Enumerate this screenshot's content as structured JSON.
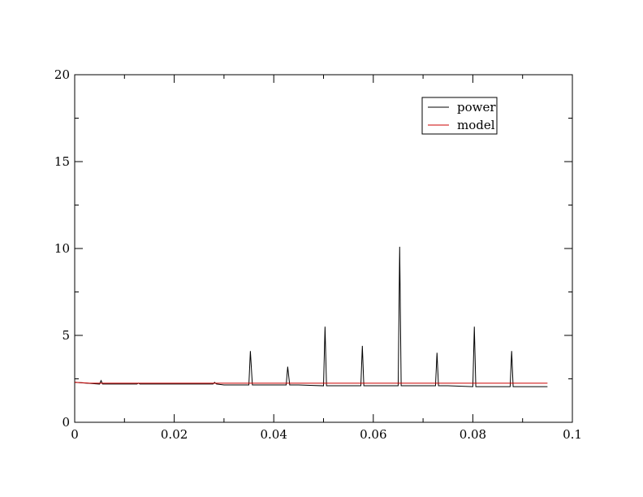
{
  "chart_data": {
    "type": "line",
    "title": "",
    "xlabel": "",
    "ylabel": "",
    "xlim": [
      0,
      0.1
    ],
    "ylim": [
      0,
      20
    ],
    "x_ticks": [
      0,
      0.02,
      0.04,
      0.06,
      0.08,
      0.1
    ],
    "x_tick_labels": [
      "0",
      "0.02",
      "0.04",
      "0.06",
      "0.08",
      "0.1"
    ],
    "y_ticks": [
      0,
      5,
      10,
      15,
      20
    ],
    "y_tick_labels": [
      "0",
      "5",
      "10",
      "15",
      "20"
    ],
    "grid": false,
    "legend_position": "top-right",
    "series": [
      {
        "name": "power",
        "color": "#000000",
        "x": [
          0.0,
          0.005,
          0.0053,
          0.0056,
          0.01,
          0.0125,
          0.0128,
          0.0131,
          0.015,
          0.02,
          0.025,
          0.0278,
          0.0281,
          0.0285,
          0.03,
          0.035,
          0.0353,
          0.0357,
          0.036,
          0.04,
          0.0425,
          0.0428,
          0.0432,
          0.0435,
          0.045,
          0.05,
          0.0503,
          0.0506,
          0.051,
          0.055,
          0.0575,
          0.0578,
          0.0581,
          0.0585,
          0.06,
          0.065,
          0.0653,
          0.0656,
          0.066,
          0.07,
          0.0725,
          0.0728,
          0.0731,
          0.0735,
          0.075,
          0.08,
          0.0803,
          0.0806,
          0.081,
          0.085,
          0.0875,
          0.0878,
          0.0881,
          0.0885,
          0.09,
          0.095
        ],
        "y": [
          2.3,
          2.2,
          2.4,
          2.2,
          2.2,
          2.2,
          2.25,
          2.2,
          2.2,
          2.2,
          2.2,
          2.2,
          2.3,
          2.2,
          2.15,
          2.15,
          4.1,
          2.15,
          2.15,
          2.15,
          2.15,
          3.2,
          2.15,
          2.15,
          2.15,
          2.1,
          5.5,
          2.1,
          2.1,
          2.1,
          2.1,
          4.4,
          2.1,
          2.1,
          2.1,
          2.1,
          10.1,
          2.1,
          2.1,
          2.1,
          2.1,
          4.0,
          2.1,
          2.1,
          2.1,
          2.05,
          5.5,
          2.05,
          2.05,
          2.05,
          2.05,
          4.1,
          2.05,
          2.05,
          2.05,
          2.05
        ]
      },
      {
        "name": "model",
        "color": "#cc0000",
        "x": [
          0.0,
          0.003,
          0.095
        ],
        "y": [
          2.3,
          2.25,
          2.25
        ]
      }
    ]
  }
}
